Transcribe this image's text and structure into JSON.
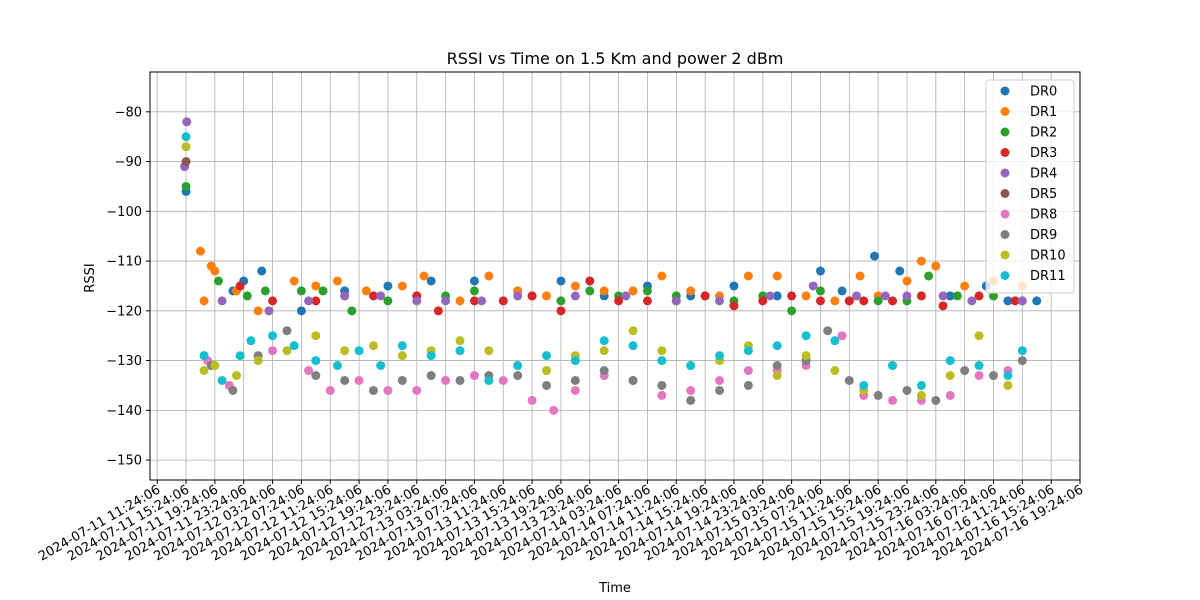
{
  "chart_data": {
    "type": "scatter",
    "title": "RSSI vs Time on 1.5 Km and power 2 dBm",
    "xlabel": "Time",
    "ylabel": "RSSI",
    "ylim": [
      -154,
      -72
    ],
    "y_ticks": [
      -80,
      -90,
      -100,
      -110,
      -120,
      -130,
      -140,
      -150
    ],
    "x_start": "2024-07-11 11:24:06",
    "x_step_hours": 4,
    "xlim_hours": [
      -1,
      128
    ],
    "x_tick_labels": [
      "2024-07-11 11:24:06",
      "2024-07-11 15:24:06",
      "2024-07-11 19:24:06",
      "2024-07-11 23:24:06",
      "2024-07-12 03:24:06",
      "2024-07-12 07:24:06",
      "2024-07-12 11:24:06",
      "2024-07-12 15:24:06",
      "2024-07-12 19:24:06",
      "2024-07-12 23:24:06",
      "2024-07-13 03:24:06",
      "2024-07-13 07:24:06",
      "2024-07-13 11:24:06",
      "2024-07-13 15:24:06",
      "2024-07-13 19:24:06",
      "2024-07-13 23:24:06",
      "2024-07-14 03:24:06",
      "2024-07-14 07:24:06",
      "2024-07-14 11:24:06",
      "2024-07-14 15:24:06",
      "2024-07-14 19:24:06",
      "2024-07-14 23:24:06",
      "2024-07-15 03:24:06",
      "2024-07-15 07:24:06",
      "2024-07-15 11:24:06",
      "2024-07-15 15:24:06",
      "2024-07-15 19:24:06",
      "2024-07-15 23:24:06",
      "2024-07-16 03:24:06",
      "2024-07-16 07:24:06",
      "2024-07-16 11:24:06",
      "2024-07-16 15:24:06",
      "2024-07-16 19:24:06"
    ],
    "grid": true,
    "legend_position": "top-right",
    "series": [
      {
        "name": "DR0",
        "color": "#1f77b4",
        "points": [
          [
            4.0,
            -96
          ],
          [
            10.5,
            -116
          ],
          [
            12.0,
            -114
          ],
          [
            14.5,
            -112
          ],
          [
            20.0,
            -120
          ],
          [
            26.0,
            -116
          ],
          [
            32.0,
            -115
          ],
          [
            38.0,
            -114
          ],
          [
            44.0,
            -114
          ],
          [
            50.0,
            -116
          ],
          [
            56.0,
            -114
          ],
          [
            62.0,
            -117
          ],
          [
            68.0,
            -115
          ],
          [
            74.0,
            -117
          ],
          [
            80.0,
            -115
          ],
          [
            86.0,
            -117
          ],
          [
            92.0,
            -112
          ],
          [
            95.0,
            -116
          ],
          [
            99.5,
            -109
          ],
          [
            103.0,
            -112
          ],
          [
            110.0,
            -117
          ],
          [
            115.0,
            -115
          ],
          [
            118.0,
            -118
          ],
          [
            122.0,
            -118
          ]
        ]
      },
      {
        "name": "DR1",
        "color": "#ff7f0e",
        "points": [
          [
            6.0,
            -108
          ],
          [
            6.5,
            -118
          ],
          [
            7.5,
            -111
          ],
          [
            8.0,
            -112
          ],
          [
            11.0,
            -116
          ],
          [
            14.0,
            -120
          ],
          [
            19.0,
            -114
          ],
          [
            22.0,
            -115
          ],
          [
            25.0,
            -114
          ],
          [
            29.0,
            -116
          ],
          [
            34.0,
            -115
          ],
          [
            37.0,
            -113
          ],
          [
            42.0,
            -118
          ],
          [
            46.0,
            -113
          ],
          [
            50.0,
            -116
          ],
          [
            54.0,
            -117
          ],
          [
            58.0,
            -115
          ],
          [
            62.0,
            -116
          ],
          [
            66.0,
            -116
          ],
          [
            70.0,
            -113
          ],
          [
            74.0,
            -116
          ],
          [
            78.0,
            -117
          ],
          [
            82.0,
            -113
          ],
          [
            86.0,
            -113
          ],
          [
            90.0,
            -117
          ],
          [
            94.0,
            -118
          ],
          [
            97.5,
            -113
          ],
          [
            100.0,
            -117
          ],
          [
            104.0,
            -114
          ],
          [
            106.0,
            -110
          ],
          [
            108.0,
            -111
          ],
          [
            112.0,
            -115
          ],
          [
            116.0,
            -114
          ],
          [
            120.0,
            -115
          ]
        ]
      },
      {
        "name": "DR2",
        "color": "#2ca02c",
        "points": [
          [
            4.0,
            -95
          ],
          [
            8.5,
            -114
          ],
          [
            12.5,
            -117
          ],
          [
            15.0,
            -116
          ],
          [
            20.0,
            -116
          ],
          [
            23.0,
            -116
          ],
          [
            27.0,
            -120
          ],
          [
            32.0,
            -118
          ],
          [
            36.0,
            -117
          ],
          [
            40.0,
            -117
          ],
          [
            44.0,
            -116
          ],
          [
            48.0,
            -118
          ],
          [
            52.0,
            -117
          ],
          [
            56.0,
            -118
          ],
          [
            60.0,
            -116
          ],
          [
            64.0,
            -117
          ],
          [
            68.0,
            -116
          ],
          [
            72.0,
            -117
          ],
          [
            76.0,
            -117
          ],
          [
            80.0,
            -118
          ],
          [
            84.0,
            -117
          ],
          [
            88.0,
            -120
          ],
          [
            92.0,
            -116
          ],
          [
            96.0,
            -118
          ],
          [
            100.0,
            -118
          ],
          [
            104.0,
            -118
          ],
          [
            107.0,
            -113
          ],
          [
            111.0,
            -117
          ],
          [
            116.0,
            -117
          ],
          [
            120.0,
            -118
          ]
        ]
      },
      {
        "name": "DR3",
        "color": "#d62728",
        "points": [
          [
            11.5,
            -115
          ],
          [
            16.0,
            -118
          ],
          [
            22.0,
            -118
          ],
          [
            26.0,
            -117
          ],
          [
            30.0,
            -117
          ],
          [
            36.0,
            -117
          ],
          [
            39.0,
            -120
          ],
          [
            44.0,
            -118
          ],
          [
            48.0,
            -118
          ],
          [
            52.0,
            -117
          ],
          [
            56.0,
            -120
          ],
          [
            60.0,
            -114
          ],
          [
            64.0,
            -118
          ],
          [
            68.0,
            -118
          ],
          [
            72.0,
            -118
          ],
          [
            76.0,
            -117
          ],
          [
            80.0,
            -119
          ],
          [
            84.0,
            -118
          ],
          [
            88.0,
            -117
          ],
          [
            92.0,
            -118
          ],
          [
            96.0,
            -118
          ],
          [
            98.0,
            -118
          ],
          [
            102.0,
            -118
          ],
          [
            106.0,
            -117
          ],
          [
            109.0,
            -119
          ],
          [
            114.0,
            -117
          ],
          [
            119.0,
            -118
          ]
        ]
      },
      {
        "name": "DR4",
        "color": "#9467bd",
        "points": [
          [
            3.8,
            -91
          ],
          [
            4.1,
            -82
          ],
          [
            9.0,
            -118
          ],
          [
            15.5,
            -120
          ],
          [
            21.0,
            -118
          ],
          [
            26.0,
            -117
          ],
          [
            31.0,
            -117
          ],
          [
            36.0,
            -118
          ],
          [
            40.0,
            -118
          ],
          [
            45.0,
            -118
          ],
          [
            50.0,
            -117
          ],
          [
            58.0,
            -117
          ],
          [
            65.0,
            -117
          ],
          [
            72.0,
            -118
          ],
          [
            78.0,
            -118
          ],
          [
            85.0,
            -117
          ],
          [
            91.0,
            -115
          ],
          [
            97.0,
            -117
          ],
          [
            101.0,
            -117
          ],
          [
            104.0,
            -117
          ],
          [
            109.0,
            -117
          ],
          [
            113.0,
            -118
          ],
          [
            120.0,
            -118
          ]
        ]
      },
      {
        "name": "DR5",
        "color": "#8c564b",
        "points": [
          [
            4.0,
            -90
          ]
        ]
      },
      {
        "name": "DR8",
        "color": "#e377c2",
        "points": [
          [
            7.0,
            -130
          ],
          [
            10.0,
            -135
          ],
          [
            16.0,
            -128
          ],
          [
            21.0,
            -132
          ],
          [
            24.0,
            -136
          ],
          [
            28.0,
            -134
          ],
          [
            32.0,
            -136
          ],
          [
            36.0,
            -136
          ],
          [
            40.0,
            -134
          ],
          [
            44.0,
            -133
          ],
          [
            48.0,
            -134
          ],
          [
            52.0,
            -138
          ],
          [
            55.0,
            -140
          ],
          [
            58.0,
            -136
          ],
          [
            62.0,
            -133
          ],
          [
            66.0,
            -134
          ],
          [
            70.0,
            -137
          ],
          [
            74.0,
            -136
          ],
          [
            78.0,
            -134
          ],
          [
            82.0,
            -132
          ],
          [
            86.0,
            -132
          ],
          [
            90.0,
            -131
          ],
          [
            95.0,
            -125
          ],
          [
            98.0,
            -137
          ],
          [
            102.0,
            -138
          ],
          [
            106.0,
            -138
          ],
          [
            110.0,
            -137
          ],
          [
            114.0,
            -133
          ],
          [
            118.0,
            -132
          ]
        ]
      },
      {
        "name": "DR9",
        "color": "#7f7f7f",
        "points": [
          [
            7.5,
            -131
          ],
          [
            10.5,
            -136
          ],
          [
            14.0,
            -129
          ],
          [
            18.0,
            -124
          ],
          [
            22.0,
            -133
          ],
          [
            26.0,
            -134
          ],
          [
            30.0,
            -136
          ],
          [
            34.0,
            -134
          ],
          [
            38.0,
            -133
          ],
          [
            42.0,
            -134
          ],
          [
            46.0,
            -133
          ],
          [
            50.0,
            -133
          ],
          [
            54.0,
            -135
          ],
          [
            58.0,
            -134
          ],
          [
            62.0,
            -132
          ],
          [
            66.0,
            -134
          ],
          [
            70.0,
            -135
          ],
          [
            74.0,
            -138
          ],
          [
            78.0,
            -136
          ],
          [
            82.0,
            -135
          ],
          [
            86.0,
            -131
          ],
          [
            90.0,
            -130
          ],
          [
            93.0,
            -124
          ],
          [
            96.0,
            -134
          ],
          [
            100.0,
            -137
          ],
          [
            104.0,
            -136
          ],
          [
            108.0,
            -138
          ],
          [
            112.0,
            -132
          ],
          [
            116.0,
            -133
          ],
          [
            120.0,
            -130
          ]
        ]
      },
      {
        "name": "DR10",
        "color": "#bcbd22",
        "points": [
          [
            4.0,
            -87
          ],
          [
            6.5,
            -132
          ],
          [
            8.0,
            -131
          ],
          [
            11.0,
            -133
          ],
          [
            14.0,
            -130
          ],
          [
            18.0,
            -128
          ],
          [
            22.0,
            -125
          ],
          [
            26.0,
            -128
          ],
          [
            30.0,
            -127
          ],
          [
            34.0,
            -129
          ],
          [
            38.0,
            -128
          ],
          [
            42.0,
            -126
          ],
          [
            46.0,
            -128
          ],
          [
            50.0,
            -131
          ],
          [
            54.0,
            -132
          ],
          [
            58.0,
            -129
          ],
          [
            62.0,
            -128
          ],
          [
            66.0,
            -124
          ],
          [
            70.0,
            -128
          ],
          [
            74.0,
            -131
          ],
          [
            78.0,
            -130
          ],
          [
            82.0,
            -127
          ],
          [
            86.0,
            -133
          ],
          [
            90.0,
            -129
          ],
          [
            94.0,
            -132
          ],
          [
            98.0,
            -136
          ],
          [
            102.0,
            -131
          ],
          [
            106.0,
            -137
          ],
          [
            110.0,
            -133
          ],
          [
            114.0,
            -125
          ],
          [
            118.0,
            -135
          ]
        ]
      },
      {
        "name": "DR11",
        "color": "#17becf",
        "points": [
          [
            4.0,
            -85
          ],
          [
            6.5,
            -129
          ],
          [
            9.0,
            -134
          ],
          [
            11.5,
            -129
          ],
          [
            13.0,
            -126
          ],
          [
            16.0,
            -125
          ],
          [
            19.0,
            -127
          ],
          [
            22.0,
            -130
          ],
          [
            25.0,
            -131
          ],
          [
            28.0,
            -128
          ],
          [
            31.0,
            -131
          ],
          [
            34.0,
            -127
          ],
          [
            38.0,
            -129
          ],
          [
            42.0,
            -128
          ],
          [
            46.0,
            -134
          ],
          [
            50.0,
            -131
          ],
          [
            54.0,
            -129
          ],
          [
            58.0,
            -130
          ],
          [
            62.0,
            -126
          ],
          [
            66.0,
            -127
          ],
          [
            70.0,
            -130
          ],
          [
            74.0,
            -131
          ],
          [
            78.0,
            -129
          ],
          [
            82.0,
            -128
          ],
          [
            86.0,
            -127
          ],
          [
            90.0,
            -125
          ],
          [
            94.0,
            -126
          ],
          [
            98.0,
            -135
          ],
          [
            102.0,
            -131
          ],
          [
            106.0,
            -135
          ],
          [
            110.0,
            -130
          ],
          [
            114.0,
            -131
          ],
          [
            118.0,
            -133
          ],
          [
            120.0,
            -128
          ]
        ]
      }
    ]
  }
}
